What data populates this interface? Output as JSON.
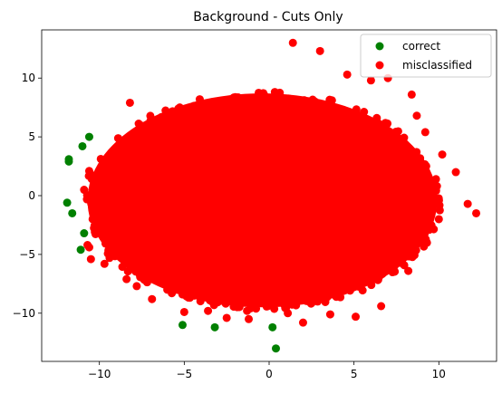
{
  "chart_data": {
    "type": "scatter",
    "title": "Background - Cuts Only",
    "xlim": [
      -13.4,
      13.4
    ],
    "ylim": [
      -14.1,
      14.1
    ],
    "x_ticks": [
      -10,
      -5,
      0,
      5,
      10
    ],
    "y_ticks": [
      -10,
      -5,
      0,
      5,
      10
    ],
    "grid": false,
    "legend_position": "top-right",
    "series": [
      {
        "name": "correct",
        "color": "#008000",
        "x": [
          -10.6,
          -11.0,
          -11.8,
          -11.8,
          -11.9,
          -11.6,
          -10.9,
          -11.1,
          -5.1,
          -3.2,
          0.2,
          0.4
        ],
        "y": [
          5.0,
          4.2,
          3.1,
          2.9,
          -0.6,
          -1.5,
          -3.2,
          -4.6,
          -11.0,
          -11.2,
          -11.2,
          -13.0
        ]
      },
      {
        "name": "misclassified",
        "color": "#ff0000",
        "core_ellipse": {
          "cx": -0.4,
          "cy": -0.4,
          "rx": 10.3,
          "ry": 9.1
        },
        "x": [
          -10.6,
          -10.9,
          -10.4,
          -10.7,
          -10.6,
          -10.5,
          -9.7,
          -9.4,
          -8.2,
          -7.8,
          -6.9,
          -5.0,
          -2.5,
          -1.2,
          1.1,
          1.4,
          3.0,
          4.6,
          6.0,
          7.0,
          8.4,
          9.2,
          10.2,
          11.0,
          11.7,
          12.2,
          9.3,
          8.2,
          6.6,
          5.1,
          3.6,
          2.0,
          -1.3,
          -3.6,
          -6.0,
          -8.4,
          -9.9,
          9.1,
          10.0,
          8.7
        ],
        "y": [
          2.1,
          0.5,
          -2.0,
          -4.2,
          -4.4,
          -5.4,
          -5.8,
          -5.3,
          7.9,
          -7.7,
          -8.8,
          -9.9,
          -10.4,
          -10.5,
          -10.0,
          13.0,
          12.3,
          10.3,
          9.8,
          10.0,
          8.6,
          5.4,
          3.5,
          2.0,
          -0.7,
          -1.5,
          -4.0,
          -6.4,
          -9.4,
          -10.3,
          -10.1,
          -10.8,
          -9.8,
          -9.8,
          -8.0,
          -7.1,
          -3.0,
          -4.0,
          -2.0,
          6.8
        ]
      }
    ]
  }
}
